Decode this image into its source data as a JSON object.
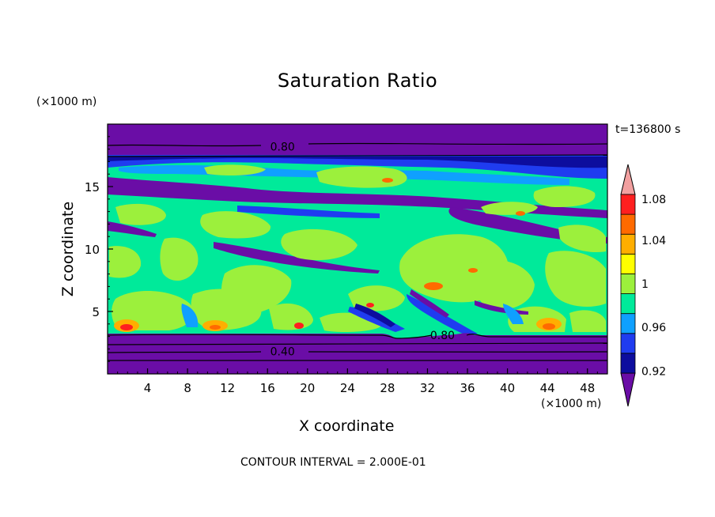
{
  "chart_data": {
    "type": "heatmap",
    "title": "Saturation Ratio",
    "xlabel": "X coordinate",
    "ylabel": "Z coordinate",
    "x_unit": "(×1000 m)",
    "y_unit": "(×1000 m)",
    "time_label": "t=136800 s",
    "footer": "CONTOUR INTERVAL = 2.000E-01",
    "xlim": [
      0,
      50
    ],
    "ylim": [
      0,
      20
    ],
    "x_ticks": [
      4,
      8,
      12,
      16,
      20,
      24,
      28,
      32,
      36,
      40,
      44,
      48
    ],
    "y_ticks": [
      5,
      10,
      15
    ],
    "contour_labels": [
      {
        "text": "0.80",
        "x": 17.5,
        "z": 18.2
      },
      {
        "text": "0.80",
        "x": 33.5,
        "z": 3.1
      },
      {
        "text": "0.40",
        "x": 17.5,
        "z": 1.8
      }
    ],
    "colorbar": {
      "tick_labels": [
        "1.08",
        "1.04",
        "1",
        "0.96",
        "0.92"
      ],
      "levels": [
        0.9,
        0.92,
        0.94,
        0.96,
        0.98,
        1.0,
        1.02,
        1.04,
        1.06,
        1.08,
        1.1
      ],
      "colors": [
        "#6a0da6",
        "#0d0d9e",
        "#1f3cf0",
        "#0fa0ff",
        "#00ea9a",
        "#9cf03c",
        "#ffff00",
        "#ffae00",
        "#ff6a00",
        "#ff1f1f",
        "#f2a0a0"
      ]
    }
  }
}
